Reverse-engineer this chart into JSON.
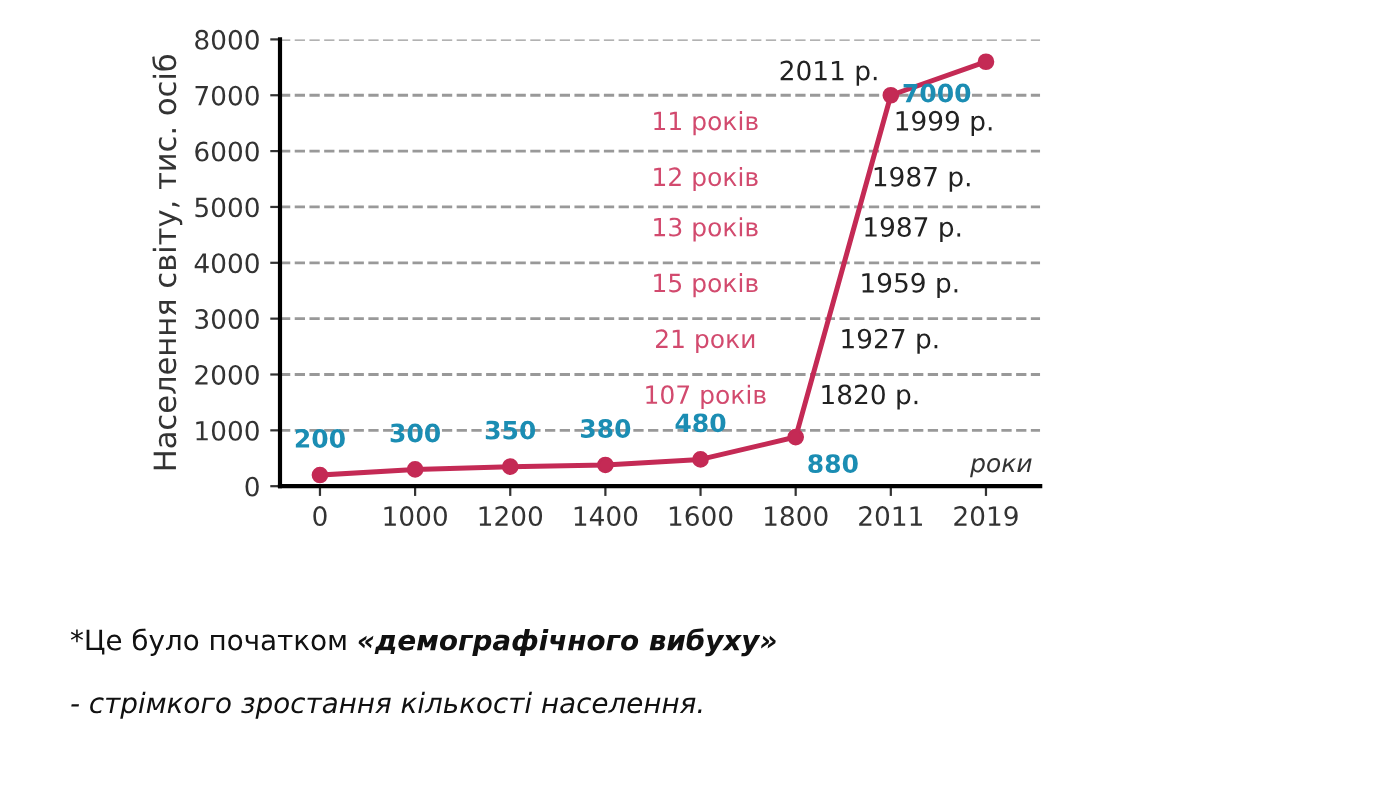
{
  "chart_data": {
    "type": "line",
    "ylabel": "Населення світу, тис. осіб",
    "xlabel": "роки",
    "categories": [
      "0",
      "1000",
      "1200",
      "1400",
      "1600",
      "1800",
      "2011",
      "2019"
    ],
    "series": [
      {
        "color": "#c42a55",
        "values": [
          200,
          300,
          350,
          380,
          480,
          880,
          7000,
          7600
        ],
        "value_labels": [
          "200",
          "300",
          "350",
          "380",
          "480",
          "880",
          "7000",
          null
        ]
      }
    ],
    "ylim": [
      0,
      8000
    ],
    "yticks": [
      0,
      1000,
      2000,
      3000,
      4000,
      5000,
      6000,
      7000,
      8000
    ],
    "grid": "y",
    "marker": "circle",
    "line_style": "solid",
    "legend": false,
    "annotations": [
      "11 років",
      "12 років",
      "13 років",
      "15 років",
      "21 роки",
      "107 років",
      "2011 р.",
      "1999 р.",
      "1987 р.",
      "1987 р.",
      "1959 р.",
      "1927 р.",
      "1820 р.",
      "*Це було початком ",
      "«демографічного вибуху»",
      "- стрімкого зростання кількості населення."
    ]
  }
}
